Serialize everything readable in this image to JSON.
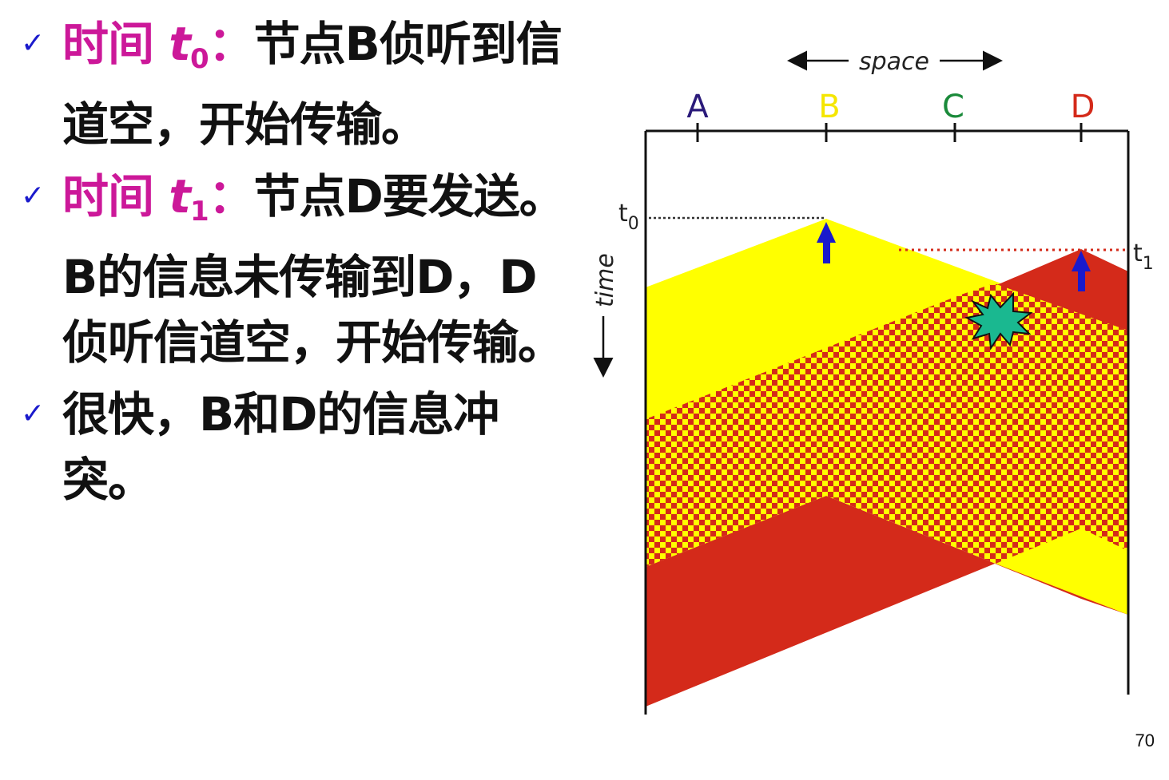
{
  "bullets": [
    {
      "label": "时间",
      "var": "t",
      "sub": "0",
      "colon": "：",
      "lines": [
        "节点B侦听到信",
        "道空，开始传输。"
      ]
    },
    {
      "label": "时间",
      "var": "t",
      "sub": "1",
      "colon": "：",
      "lines": [
        "节点D要发送。",
        "B的信息未传输到D，D",
        "侦听信道空，开始传输。"
      ]
    },
    {
      "lines": [
        "很快，B和D的信息冲",
        "突。"
      ]
    }
  ],
  "check_glyph": "✓",
  "diagram": {
    "space_label": "space",
    "time_label": "time",
    "nodes": [
      {
        "label": "A",
        "color": "#2a1a7a"
      },
      {
        "label": "B",
        "color": "#f5e600"
      },
      {
        "label": "C",
        "color": "#1a8a3a"
      },
      {
        "label": "D",
        "color": "#d42a1a"
      }
    ],
    "t0_label": "t",
    "t0_sub": "0",
    "t1_label": "t",
    "t1_sub": "1",
    "colors": {
      "yellow": "#ffff00",
      "red": "#d42a1a",
      "arrow": "#1a1acc",
      "burst": "#1ab890"
    }
  },
  "page_number": "70"
}
